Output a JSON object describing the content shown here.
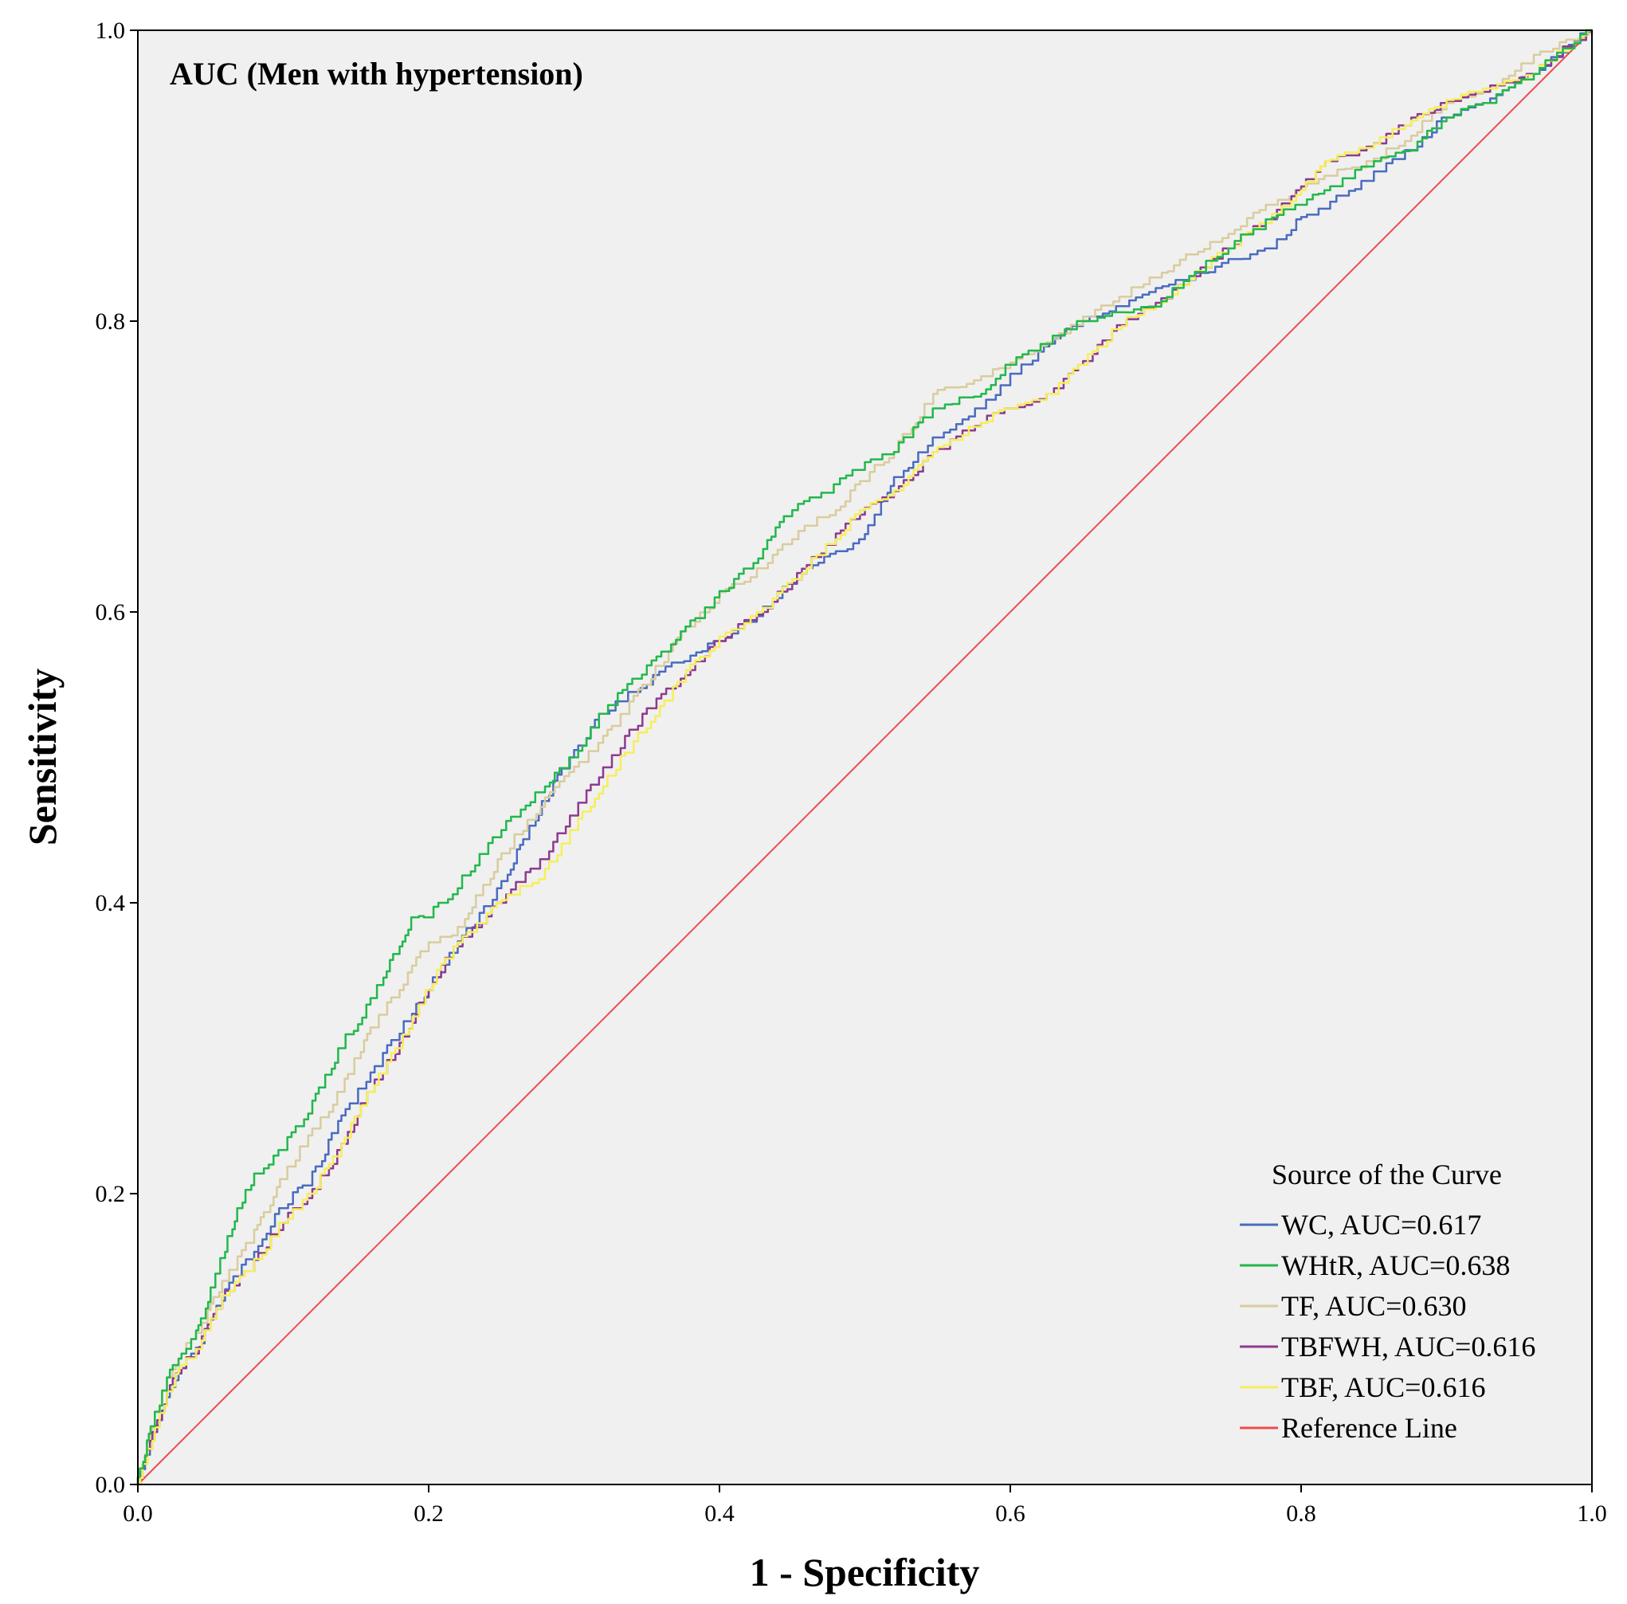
{
  "chart_data": {
    "type": "line",
    "title": "AUC (Men with hypertension)",
    "xlabel": "1 - Specificity",
    "ylabel": "Sensitivity",
    "xlim": [
      0,
      1
    ],
    "ylim": [
      0,
      1
    ],
    "xticks": [
      "0.0",
      "0.2",
      "0.4",
      "0.6",
      "0.8",
      "1.0"
    ],
    "yticks": [
      "0.0",
      "0.2",
      "0.4",
      "0.6",
      "0.8",
      "1.0"
    ],
    "grid": false,
    "background": "#f0f0f0",
    "legend_title": "Source of the Curve",
    "legend_position": "bottom-right",
    "series": [
      {
        "name": "WC, AUC=0.617",
        "color": "#4a6bbf",
        "x": [
          0,
          0.01,
          0.02,
          0.03,
          0.04,
          0.05,
          0.06,
          0.08,
          0.1,
          0.12,
          0.14,
          0.16,
          0.18,
          0.2,
          0.22,
          0.25,
          0.28,
          0.3,
          0.32,
          0.35,
          0.38,
          0.4,
          0.43,
          0.46,
          0.48,
          0.5,
          0.52,
          0.55,
          0.58,
          0.6,
          0.65,
          0.7,
          0.75,
          0.78,
          0.8,
          0.82,
          0.85,
          0.88,
          0.9,
          0.93,
          0.96,
          1.0
        ],
        "y": [
          0,
          0.03,
          0.06,
          0.08,
          0.09,
          0.11,
          0.13,
          0.16,
          0.19,
          0.21,
          0.25,
          0.28,
          0.31,
          0.34,
          0.37,
          0.41,
          0.47,
          0.5,
          0.53,
          0.55,
          0.57,
          0.58,
          0.6,
          0.63,
          0.64,
          0.65,
          0.69,
          0.72,
          0.74,
          0.76,
          0.8,
          0.82,
          0.84,
          0.85,
          0.87,
          0.88,
          0.9,
          0.92,
          0.94,
          0.95,
          0.97,
          1.0
        ]
      },
      {
        "name": "WHtR, AUC=0.638",
        "color": "#22b84c",
        "x": [
          0,
          0.01,
          0.02,
          0.03,
          0.04,
          0.05,
          0.06,
          0.07,
          0.08,
          0.09,
          0.1,
          0.12,
          0.14,
          0.16,
          0.18,
          0.19,
          0.2,
          0.22,
          0.25,
          0.28,
          0.3,
          0.32,
          0.35,
          0.38,
          0.4,
          0.43,
          0.45,
          0.47,
          0.5,
          0.52,
          0.55,
          0.58,
          0.6,
          0.65,
          0.7,
          0.75,
          0.78,
          0.8,
          0.82,
          0.85,
          0.88,
          0.9,
          0.93,
          0.96,
          1.0
        ],
        "y": [
          0,
          0.04,
          0.07,
          0.09,
          0.1,
          0.13,
          0.16,
          0.19,
          0.21,
          0.22,
          0.23,
          0.26,
          0.3,
          0.33,
          0.37,
          0.39,
          0.39,
          0.41,
          0.45,
          0.48,
          0.5,
          0.53,
          0.56,
          0.59,
          0.61,
          0.64,
          0.67,
          0.68,
          0.7,
          0.71,
          0.74,
          0.75,
          0.77,
          0.8,
          0.81,
          0.85,
          0.87,
          0.88,
          0.89,
          0.91,
          0.92,
          0.94,
          0.95,
          0.97,
          1.0
        ]
      },
      {
        "name": "TF, AUC=0.630",
        "color": "#d9cc9e",
        "x": [
          0,
          0.01,
          0.02,
          0.03,
          0.04,
          0.05,
          0.06,
          0.08,
          0.1,
          0.12,
          0.14,
          0.16,
          0.18,
          0.2,
          0.22,
          0.25,
          0.28,
          0.3,
          0.32,
          0.35,
          0.38,
          0.4,
          0.43,
          0.45,
          0.48,
          0.5,
          0.52,
          0.55,
          0.58,
          0.6,
          0.65,
          0.7,
          0.75,
          0.78,
          0.8,
          0.82,
          0.85,
          0.88,
          0.9,
          0.93,
          0.96,
          1.0
        ],
        "y": [
          0,
          0.04,
          0.07,
          0.09,
          0.1,
          0.12,
          0.14,
          0.17,
          0.21,
          0.24,
          0.27,
          0.31,
          0.34,
          0.37,
          0.38,
          0.43,
          0.47,
          0.49,
          0.51,
          0.55,
          0.59,
          0.61,
          0.63,
          0.65,
          0.67,
          0.69,
          0.71,
          0.75,
          0.76,
          0.77,
          0.8,
          0.83,
          0.86,
          0.88,
          0.89,
          0.9,
          0.91,
          0.93,
          0.95,
          0.96,
          0.98,
          1.0
        ]
      },
      {
        "name": "TBFWH, AUC=0.616",
        "color": "#8e3a8e",
        "x": [
          0,
          0.01,
          0.02,
          0.03,
          0.04,
          0.05,
          0.06,
          0.08,
          0.1,
          0.12,
          0.14,
          0.16,
          0.18,
          0.2,
          0.22,
          0.25,
          0.28,
          0.3,
          0.32,
          0.35,
          0.38,
          0.4,
          0.43,
          0.45,
          0.48,
          0.5,
          0.52,
          0.55,
          0.58,
          0.6,
          0.63,
          0.65,
          0.68,
          0.7,
          0.75,
          0.78,
          0.8,
          0.82,
          0.85,
          0.88,
          0.9,
          0.93,
          0.96,
          1.0
        ],
        "y": [
          0,
          0.03,
          0.06,
          0.08,
          0.09,
          0.11,
          0.13,
          0.15,
          0.18,
          0.2,
          0.23,
          0.27,
          0.3,
          0.34,
          0.37,
          0.4,
          0.43,
          0.46,
          0.49,
          0.53,
          0.56,
          0.58,
          0.6,
          0.62,
          0.65,
          0.67,
          0.68,
          0.71,
          0.73,
          0.74,
          0.75,
          0.77,
          0.8,
          0.81,
          0.85,
          0.87,
          0.89,
          0.91,
          0.92,
          0.94,
          0.95,
          0.96,
          0.97,
          1.0
        ]
      },
      {
        "name": "TBF, AUC=0.616",
        "color": "#f5ef5a",
        "x": [
          0,
          0.01,
          0.02,
          0.03,
          0.04,
          0.05,
          0.06,
          0.08,
          0.1,
          0.12,
          0.14,
          0.16,
          0.18,
          0.2,
          0.22,
          0.25,
          0.28,
          0.3,
          0.32,
          0.35,
          0.38,
          0.4,
          0.43,
          0.45,
          0.48,
          0.5,
          0.52,
          0.55,
          0.58,
          0.6,
          0.63,
          0.65,
          0.68,
          0.7,
          0.75,
          0.78,
          0.8,
          0.82,
          0.85,
          0.88,
          0.9,
          0.93,
          0.96,
          1.0
        ],
        "y": [
          0,
          0.03,
          0.06,
          0.08,
          0.09,
          0.11,
          0.13,
          0.15,
          0.18,
          0.2,
          0.23,
          0.27,
          0.3,
          0.34,
          0.37,
          0.4,
          0.42,
          0.45,
          0.48,
          0.52,
          0.56,
          0.58,
          0.6,
          0.62,
          0.65,
          0.67,
          0.68,
          0.71,
          0.73,
          0.74,
          0.75,
          0.77,
          0.8,
          0.81,
          0.85,
          0.87,
          0.89,
          0.91,
          0.92,
          0.94,
          0.95,
          0.96,
          0.97,
          1.0
        ]
      },
      {
        "name": "Reference Line",
        "color": "#ef4b4b",
        "x": [
          0,
          1
        ],
        "y": [
          0,
          1
        ]
      }
    ]
  }
}
